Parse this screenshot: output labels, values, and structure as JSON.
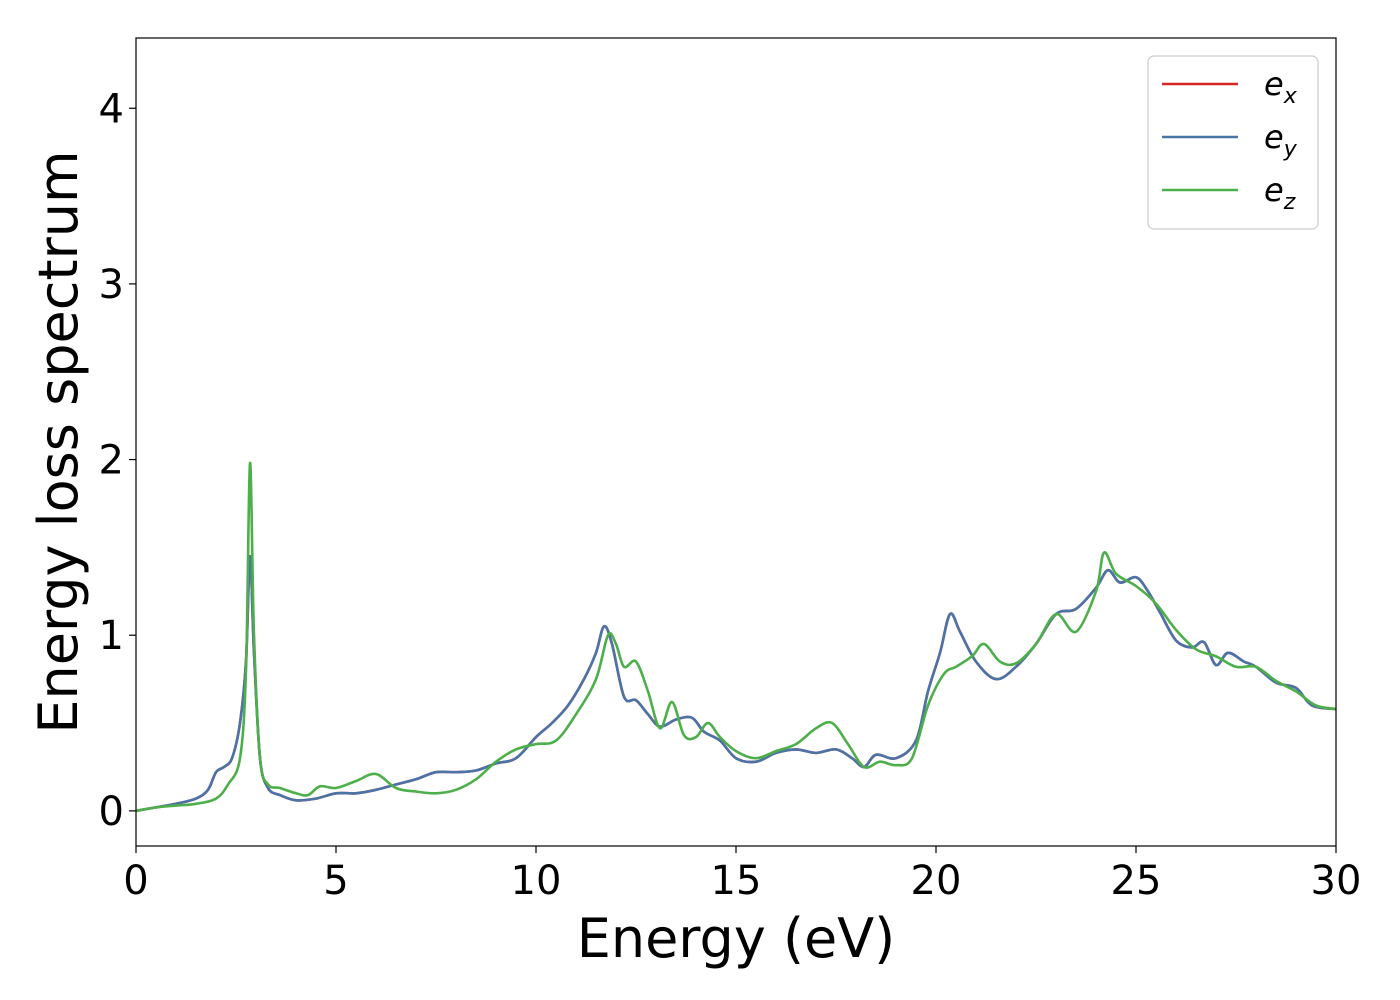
{
  "chart_data": {
    "type": "line",
    "title": "",
    "xlabel": "Energy (eV)",
    "ylabel": "Energy loss spectrum",
    "xlim": [
      0,
      30
    ],
    "ylim": [
      -0.2,
      4.4
    ],
    "xticks": [
      0,
      5,
      10,
      15,
      20,
      25,
      30
    ],
    "yticks": [
      0,
      1,
      2,
      3,
      4
    ],
    "grid": false,
    "legend_position": "top-right",
    "series": [
      {
        "name": "e_x",
        "label_base": "e",
        "label_sub": "x",
        "color": "#d62728",
        "points": [
          [
            0,
            0
          ],
          [
            0.5,
            0.02
          ],
          [
            1.0,
            0.04
          ],
          [
            1.5,
            0.07
          ],
          [
            1.8,
            0.12
          ],
          [
            2.0,
            0.22
          ],
          [
            2.2,
            0.25
          ],
          [
            2.4,
            0.3
          ],
          [
            2.6,
            0.5
          ],
          [
            2.75,
            0.85
          ],
          [
            2.85,
            1.45
          ],
          [
            2.95,
            0.9
          ],
          [
            3.1,
            0.3
          ],
          [
            3.3,
            0.13
          ],
          [
            3.6,
            0.09
          ],
          [
            4.0,
            0.06
          ],
          [
            4.5,
            0.07
          ],
          [
            5.0,
            0.1
          ],
          [
            5.5,
            0.1
          ],
          [
            6.0,
            0.12
          ],
          [
            6.5,
            0.15
          ],
          [
            7.0,
            0.18
          ],
          [
            7.5,
            0.22
          ],
          [
            8.0,
            0.22
          ],
          [
            8.5,
            0.23
          ],
          [
            9.0,
            0.27
          ],
          [
            9.5,
            0.3
          ],
          [
            10.0,
            0.42
          ],
          [
            10.4,
            0.5
          ],
          [
            10.8,
            0.6
          ],
          [
            11.2,
            0.75
          ],
          [
            11.5,
            0.9
          ],
          [
            11.7,
            1.05
          ],
          [
            11.9,
            0.95
          ],
          [
            12.2,
            0.65
          ],
          [
            12.5,
            0.63
          ],
          [
            12.8,
            0.55
          ],
          [
            13.1,
            0.48
          ],
          [
            13.5,
            0.52
          ],
          [
            13.9,
            0.53
          ],
          [
            14.2,
            0.45
          ],
          [
            14.6,
            0.4
          ],
          [
            15.0,
            0.3
          ],
          [
            15.5,
            0.28
          ],
          [
            16.0,
            0.33
          ],
          [
            16.5,
            0.35
          ],
          [
            17.0,
            0.33
          ],
          [
            17.5,
            0.35
          ],
          [
            17.9,
            0.3
          ],
          [
            18.2,
            0.25
          ],
          [
            18.5,
            0.32
          ],
          [
            19.0,
            0.3
          ],
          [
            19.5,
            0.4
          ],
          [
            19.8,
            0.68
          ],
          [
            20.1,
            0.9
          ],
          [
            20.35,
            1.12
          ],
          [
            20.6,
            1.02
          ],
          [
            21.0,
            0.85
          ],
          [
            21.5,
            0.75
          ],
          [
            22.0,
            0.82
          ],
          [
            22.5,
            0.95
          ],
          [
            23.0,
            1.12
          ],
          [
            23.5,
            1.15
          ],
          [
            24.0,
            1.27
          ],
          [
            24.3,
            1.37
          ],
          [
            24.6,
            1.3
          ],
          [
            25.0,
            1.33
          ],
          [
            25.3,
            1.25
          ],
          [
            25.6,
            1.13
          ],
          [
            26.0,
            0.97
          ],
          [
            26.4,
            0.93
          ],
          [
            26.7,
            0.96
          ],
          [
            27.0,
            0.83
          ],
          [
            27.3,
            0.9
          ],
          [
            27.7,
            0.85
          ],
          [
            28.0,
            0.82
          ],
          [
            28.5,
            0.73
          ],
          [
            29.0,
            0.7
          ],
          [
            29.4,
            0.6
          ],
          [
            30.0,
            0.58
          ]
        ]
      },
      {
        "name": "e_y",
        "label_base": "e",
        "label_sub": "y",
        "color": "#4a74a8",
        "points": [
          [
            0,
            0
          ],
          [
            0.5,
            0.02
          ],
          [
            1.0,
            0.04
          ],
          [
            1.5,
            0.07
          ],
          [
            1.8,
            0.12
          ],
          [
            2.0,
            0.22
          ],
          [
            2.2,
            0.25
          ],
          [
            2.4,
            0.3
          ],
          [
            2.6,
            0.5
          ],
          [
            2.75,
            0.85
          ],
          [
            2.85,
            1.45
          ],
          [
            2.95,
            0.9
          ],
          [
            3.1,
            0.3
          ],
          [
            3.3,
            0.13
          ],
          [
            3.6,
            0.09
          ],
          [
            4.0,
            0.06
          ],
          [
            4.5,
            0.07
          ],
          [
            5.0,
            0.1
          ],
          [
            5.5,
            0.1
          ],
          [
            6.0,
            0.12
          ],
          [
            6.5,
            0.15
          ],
          [
            7.0,
            0.18
          ],
          [
            7.5,
            0.22
          ],
          [
            8.0,
            0.22
          ],
          [
            8.5,
            0.23
          ],
          [
            9.0,
            0.27
          ],
          [
            9.5,
            0.3
          ],
          [
            10.0,
            0.42
          ],
          [
            10.4,
            0.5
          ],
          [
            10.8,
            0.6
          ],
          [
            11.2,
            0.75
          ],
          [
            11.5,
            0.9
          ],
          [
            11.7,
            1.05
          ],
          [
            11.9,
            0.95
          ],
          [
            12.2,
            0.65
          ],
          [
            12.5,
            0.63
          ],
          [
            12.8,
            0.55
          ],
          [
            13.1,
            0.48
          ],
          [
            13.5,
            0.52
          ],
          [
            13.9,
            0.53
          ],
          [
            14.2,
            0.45
          ],
          [
            14.6,
            0.4
          ],
          [
            15.0,
            0.3
          ],
          [
            15.5,
            0.28
          ],
          [
            16.0,
            0.33
          ],
          [
            16.5,
            0.35
          ],
          [
            17.0,
            0.33
          ],
          [
            17.5,
            0.35
          ],
          [
            17.9,
            0.3
          ],
          [
            18.2,
            0.25
          ],
          [
            18.5,
            0.32
          ],
          [
            19.0,
            0.3
          ],
          [
            19.5,
            0.4
          ],
          [
            19.8,
            0.68
          ],
          [
            20.1,
            0.9
          ],
          [
            20.35,
            1.12
          ],
          [
            20.6,
            1.02
          ],
          [
            21.0,
            0.85
          ],
          [
            21.5,
            0.75
          ],
          [
            22.0,
            0.82
          ],
          [
            22.5,
            0.95
          ],
          [
            23.0,
            1.12
          ],
          [
            23.5,
            1.15
          ],
          [
            24.0,
            1.27
          ],
          [
            24.3,
            1.37
          ],
          [
            24.6,
            1.3
          ],
          [
            25.0,
            1.33
          ],
          [
            25.3,
            1.25
          ],
          [
            25.6,
            1.13
          ],
          [
            26.0,
            0.97
          ],
          [
            26.4,
            0.93
          ],
          [
            26.7,
            0.96
          ],
          [
            27.0,
            0.83
          ],
          [
            27.3,
            0.9
          ],
          [
            27.7,
            0.85
          ],
          [
            28.0,
            0.82
          ],
          [
            28.5,
            0.73
          ],
          [
            29.0,
            0.7
          ],
          [
            29.4,
            0.6
          ],
          [
            30.0,
            0.58
          ]
        ]
      },
      {
        "name": "e_z",
        "label_base": "e",
        "label_sub": "z",
        "color": "#4daf4a",
        "points": [
          [
            0,
            0
          ],
          [
            0.5,
            0.02
          ],
          [
            1.0,
            0.03
          ],
          [
            1.5,
            0.04
          ],
          [
            2.0,
            0.07
          ],
          [
            2.3,
            0.15
          ],
          [
            2.6,
            0.3
          ],
          [
            2.75,
            0.8
          ],
          [
            2.85,
            1.98
          ],
          [
            2.95,
            1.0
          ],
          [
            3.1,
            0.3
          ],
          [
            3.3,
            0.15
          ],
          [
            3.6,
            0.13
          ],
          [
            4.0,
            0.1
          ],
          [
            4.3,
            0.09
          ],
          [
            4.6,
            0.14
          ],
          [
            5.0,
            0.13
          ],
          [
            5.5,
            0.17
          ],
          [
            6.0,
            0.21
          ],
          [
            6.5,
            0.13
          ],
          [
            7.0,
            0.11
          ],
          [
            7.5,
            0.1
          ],
          [
            8.0,
            0.12
          ],
          [
            8.5,
            0.18
          ],
          [
            9.0,
            0.28
          ],
          [
            9.5,
            0.35
          ],
          [
            10.0,
            0.38
          ],
          [
            10.5,
            0.4
          ],
          [
            11.0,
            0.55
          ],
          [
            11.5,
            0.75
          ],
          [
            11.8,
            1.0
          ],
          [
            12.0,
            0.95
          ],
          [
            12.2,
            0.82
          ],
          [
            12.5,
            0.85
          ],
          [
            12.8,
            0.68
          ],
          [
            13.1,
            0.47
          ],
          [
            13.4,
            0.62
          ],
          [
            13.7,
            0.43
          ],
          [
            14.0,
            0.42
          ],
          [
            14.3,
            0.5
          ],
          [
            14.6,
            0.42
          ],
          [
            15.0,
            0.34
          ],
          [
            15.5,
            0.3
          ],
          [
            16.0,
            0.34
          ],
          [
            16.5,
            0.38
          ],
          [
            17.0,
            0.47
          ],
          [
            17.4,
            0.5
          ],
          [
            17.8,
            0.38
          ],
          [
            18.2,
            0.25
          ],
          [
            18.6,
            0.28
          ],
          [
            19.0,
            0.26
          ],
          [
            19.4,
            0.3
          ],
          [
            19.8,
            0.6
          ],
          [
            20.2,
            0.78
          ],
          [
            20.5,
            0.82
          ],
          [
            20.9,
            0.88
          ],
          [
            21.2,
            0.95
          ],
          [
            21.6,
            0.85
          ],
          [
            22.0,
            0.84
          ],
          [
            22.5,
            0.95
          ],
          [
            23.0,
            1.12
          ],
          [
            23.5,
            1.02
          ],
          [
            24.0,
            1.25
          ],
          [
            24.2,
            1.47
          ],
          [
            24.5,
            1.35
          ],
          [
            25.0,
            1.28
          ],
          [
            25.5,
            1.18
          ],
          [
            26.0,
            1.03
          ],
          [
            26.5,
            0.92
          ],
          [
            27.0,
            0.88
          ],
          [
            27.5,
            0.82
          ],
          [
            28.0,
            0.82
          ],
          [
            28.5,
            0.74
          ],
          [
            29.0,
            0.68
          ],
          [
            29.5,
            0.6
          ],
          [
            30.0,
            0.58
          ]
        ]
      }
    ]
  }
}
